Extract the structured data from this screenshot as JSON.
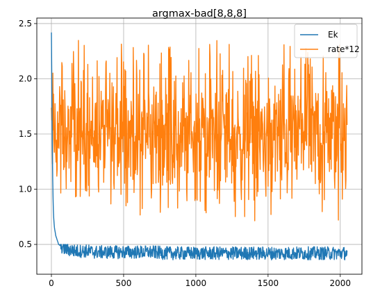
{
  "chart_data": {
    "type": "line",
    "title": "argmax-bad[8,8,8]",
    "xlabel": "",
    "ylabel": "",
    "xlim": [
      -101,
      2150
    ],
    "ylim": [
      0.23,
      2.55
    ],
    "xticks": [
      0,
      500,
      1000,
      1500,
      2000
    ],
    "yticks": [
      0.5,
      1.0,
      1.5,
      2.0,
      2.5
    ],
    "xtick_labels": [
      "0",
      "500",
      "1000",
      "1500",
      "2000"
    ],
    "ytick_labels": [
      "0.5",
      "1.0",
      "1.5",
      "2.0",
      "2.5"
    ],
    "grid": true,
    "legend_position": "top-right",
    "series": [
      {
        "name": "Ek",
        "color": "#1f77b4",
        "x": [
          0,
          2,
          4,
          6,
          8,
          10,
          12,
          14,
          16,
          18,
          20,
          25,
          30,
          35,
          40,
          45,
          50,
          60,
          70,
          80,
          90,
          100,
          120,
          140,
          160,
          180,
          200,
          250,
          300,
          350,
          400,
          450,
          500,
          600,
          700,
          800,
          900,
          1000,
          1100,
          1200,
          1300,
          1400,
          1500,
          1600,
          1700,
          1800,
          1900,
          2000,
          2047
        ],
        "y": [
          2.42,
          2.1,
          1.75,
          1.45,
          1.2,
          1.0,
          0.88,
          0.8,
          0.74,
          0.7,
          0.66,
          0.62,
          0.58,
          0.56,
          0.54,
          0.52,
          0.5,
          0.49,
          0.48,
          0.47,
          0.46,
          0.46,
          0.45,
          0.45,
          0.44,
          0.44,
          0.44,
          0.44,
          0.43,
          0.43,
          0.43,
          0.43,
          0.43,
          0.43,
          0.43,
          0.42,
          0.42,
          0.42,
          0.42,
          0.42,
          0.42,
          0.42,
          0.42,
          0.42,
          0.42,
          0.42,
          0.42,
          0.42,
          0.42
        ],
        "noise_low": 0.35,
        "noise_high": 0.5
      },
      {
        "name": "rate*12",
        "color": "#ff7f0e",
        "x_start": 0,
        "x_end": 2047,
        "mean": 1.5,
        "max": 2.35,
        "min": 0.7
      }
    ]
  }
}
